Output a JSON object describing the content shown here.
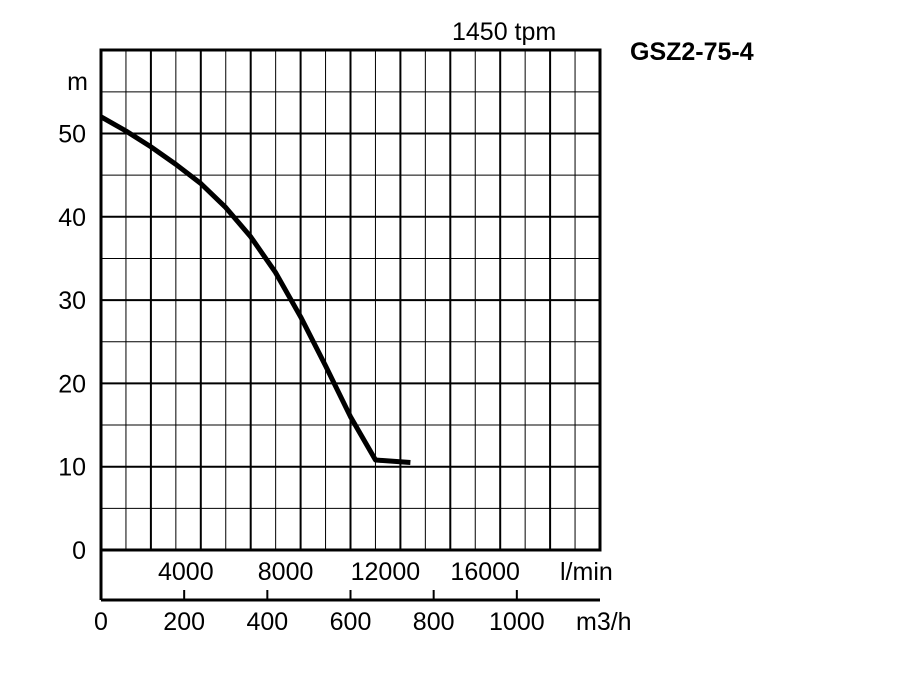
{
  "speed_label": "1450 tpm",
  "model_label": "GSZ2-75-4",
  "chart_data": {
    "type": "line",
    "title": "1450 tpm",
    "ylabel": "m",
    "xlabel": "m3/h",
    "xlabel_secondary": "l/min",
    "xlim": [
      0,
      1200
    ],
    "ylim": [
      0,
      57
    ],
    "grid": true,
    "y_ticks": [
      {
        "value": 0,
        "label": "0"
      },
      {
        "value": 10,
        "label": "10"
      },
      {
        "value": 20,
        "label": "20"
      },
      {
        "value": 30,
        "label": "30"
      },
      {
        "value": 40,
        "label": "40"
      },
      {
        "value": 50,
        "label": "50"
      }
    ],
    "x_ticks_m3h": [
      {
        "value": 0,
        "label": "0"
      },
      {
        "value": 200,
        "label": "200"
      },
      {
        "value": 400,
        "label": "400"
      },
      {
        "value": 600,
        "label": "600"
      },
      {
        "value": 800,
        "label": "800"
      },
      {
        "value": 1000,
        "label": "1000"
      }
    ],
    "x_ticks_lmin": [
      {
        "value": 4000,
        "label": "4000"
      },
      {
        "value": 8000,
        "label": "8000"
      },
      {
        "value": 12000,
        "label": "12000"
      },
      {
        "value": 16000,
        "label": "16000"
      }
    ],
    "series": [
      {
        "color": "#000000",
        "points": [
          [
            0,
            52
          ],
          [
            60,
            50.3
          ],
          [
            120,
            48.4
          ],
          [
            180,
            46.3
          ],
          [
            240,
            44
          ],
          [
            300,
            41.1
          ],
          [
            360,
            37.6
          ],
          [
            420,
            33.3
          ],
          [
            480,
            28
          ],
          [
            540,
            22.1
          ],
          [
            600,
            16
          ],
          [
            660,
            10.8
          ],
          [
            744,
            10.5
          ]
        ]
      }
    ]
  }
}
